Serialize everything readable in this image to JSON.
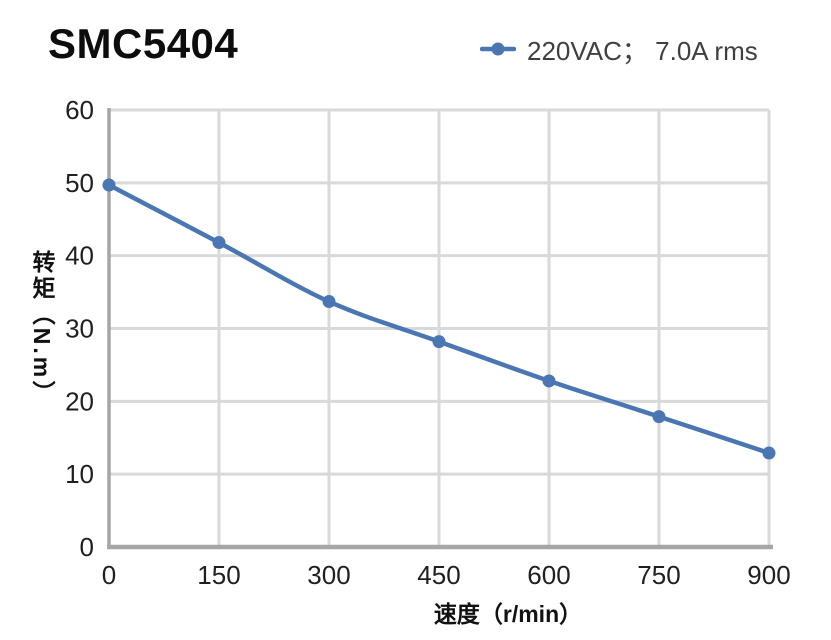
{
  "header": {
    "title": "SMC5404"
  },
  "legend": {
    "label": "220VAC； 7.0A rms",
    "marker_icon": "line-dot-marker",
    "color": "#4A77B4"
  },
  "chart_data": {
    "type": "line",
    "title": "SMC5404",
    "x": [
      0,
      150,
      300,
      450,
      600,
      750,
      900
    ],
    "series": [
      {
        "name": "220VAC； 7.0A rms",
        "color": "#4A77B4",
        "values": [
          49.7,
          41.8,
          33.7,
          28.2,
          22.8,
          17.9,
          12.9
        ]
      }
    ],
    "xlabel": "速度（r/min）",
    "ylabel": "转矩（N.m）",
    "xlim": [
      0,
      900
    ],
    "ylim": [
      0,
      60
    ],
    "x_ticks": [
      0,
      150,
      300,
      450,
      600,
      750,
      900
    ],
    "y_ticks": [
      0,
      10,
      20,
      30,
      40,
      50,
      60
    ],
    "grid": true,
    "smooth": true,
    "legend_position": "top-right",
    "colors": {
      "line": "#4A77B4",
      "grid": "#D9D9D9",
      "axis": "#A6A6A6",
      "tick_text": "#1F1F1F",
      "legend_text": "#3F3F3F"
    }
  }
}
